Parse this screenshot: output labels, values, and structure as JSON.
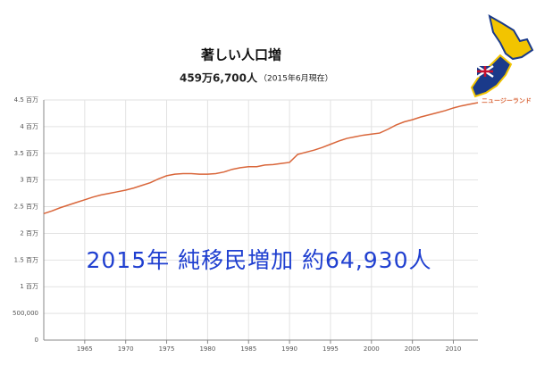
{
  "chart_data": {
    "type": "line",
    "title": "著しい人口増",
    "subtitle": "459万6,700人",
    "subtitle_note": "（2015年6月現在）",
    "annotation": "2015年  純移民増加  約64,930人",
    "x": [
      1960,
      1961,
      1962,
      1963,
      1964,
      1965,
      1966,
      1967,
      1968,
      1969,
      1970,
      1971,
      1972,
      1973,
      1974,
      1975,
      1976,
      1977,
      1978,
      1979,
      1980,
      1981,
      1982,
      1983,
      1984,
      1985,
      1986,
      1987,
      1988,
      1989,
      1990,
      1991,
      1992,
      1993,
      1994,
      1995,
      1996,
      1997,
      1998,
      1999,
      2000,
      2001,
      2002,
      2003,
      2004,
      2005,
      2006,
      2007,
      2008,
      2009,
      2010,
      2011,
      2012,
      2013
    ],
    "series": [
      {
        "name": "ニュージーランド",
        "color": "#d9663a",
        "values": [
          2370000,
          2420000,
          2480000,
          2530000,
          2580000,
          2630000,
          2680000,
          2720000,
          2750000,
          2780000,
          2810000,
          2850000,
          2900000,
          2950000,
          3020000,
          3080000,
          3110000,
          3120000,
          3120000,
          3110000,
          3110000,
          3120000,
          3150000,
          3200000,
          3230000,
          3250000,
          3250000,
          3280000,
          3290000,
          3310000,
          3330000,
          3480000,
          3520000,
          3560000,
          3610000,
          3670000,
          3730000,
          3780000,
          3810000,
          3840000,
          3860000,
          3880000,
          3950000,
          4030000,
          4090000,
          4130000,
          4180000,
          4220000,
          4260000,
          4300000,
          4350000,
          4390000,
          4420000,
          4450000
        ]
      }
    ],
    "xlim": [
      1960,
      2013
    ],
    "xticks": [
      1965,
      1970,
      1975,
      1980,
      1985,
      1990,
      1995,
      2000,
      2005,
      2010
    ],
    "ylim": [
      0,
      4500000
    ],
    "yticks": [
      0,
      {
        "value": 500000,
        "label": "500,000"
      },
      {
        "value": 1000000,
        "label": "1 百万"
      },
      {
        "value": 1500000,
        "label": "1.5 百万"
      },
      {
        "value": 2000000,
        "label": "2 百万"
      },
      {
        "value": 2500000,
        "label": "2.5 百万"
      },
      {
        "value": 3000000,
        "label": "3 百万"
      },
      {
        "value": 3500000,
        "label": "3.5 百万"
      },
      {
        "value": 4000000,
        "label": "4 百万"
      },
      {
        "value": 4500000,
        "label": "4.5 百万"
      }
    ],
    "grid": true
  }
}
